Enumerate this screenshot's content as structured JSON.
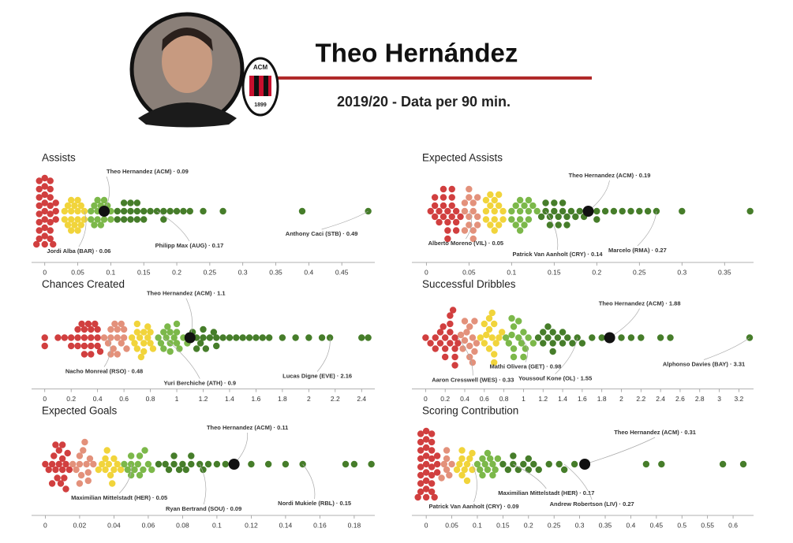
{
  "header": {
    "title": "Theo Hernández",
    "subtitle": "2019/20 - Data per 90 min.",
    "badge_top": "ACM",
    "badge_year": "1899"
  },
  "chart_data": [
    {
      "type": "beeswarm",
      "title": "Assists",
      "xlim": [
        -0.02,
        0.5
      ],
      "xticks": [
        0,
        0.05,
        0.1,
        0.15,
        0.2,
        0.25,
        0.3,
        0.35,
        0.4,
        0.45
      ],
      "series": [
        {
          "color": "#d13f3f",
          "values": [
            0,
            0,
            0,
            0,
            0,
            0,
            0,
            0,
            0,
            0,
            0,
            0,
            0,
            0,
            0,
            0,
            0,
            0,
            0,
            0,
            0,
            0,
            0,
            0,
            0,
            0,
            0,
            0,
            0,
            0
          ]
        },
        {
          "color": "#f1d43b",
          "values": [
            0.03,
            0.03,
            0.035,
            0.04,
            0.04,
            0.04,
            0.045,
            0.045,
            0.05,
            0.05,
            0.05,
            0.055,
            0.055,
            0.06,
            0.06,
            0.04,
            0.035,
            0.05
          ]
        },
        {
          "color": "#7cb84a",
          "values": [
            0.07,
            0.07,
            0.075,
            0.08,
            0.08,
            0.08,
            0.085,
            0.09,
            0.09,
            0.095,
            0.1,
            0.1,
            0.075,
            0.085,
            0.09
          ]
        },
        {
          "color": "#467d2a",
          "values": [
            0.11,
            0.11,
            0.12,
            0.12,
            0.13,
            0.13,
            0.14,
            0.14,
            0.15,
            0.15,
            0.16,
            0.12,
            0.13,
            0.14,
            0.17,
            0.18,
            0.18,
            0.19,
            0.2,
            0.21,
            0.22,
            0.24,
            0.27,
            0.39,
            0.49
          ]
        }
      ],
      "annotations": [
        {
          "label": "Theo Hernandez (ACM) · 0.09",
          "x": 0.09,
          "color": "#111111"
        },
        {
          "label": "Jordi Alba (BAR) · 0.06",
          "x": 0.06
        },
        {
          "label": "Philipp Max (AUG) · 0.17",
          "x": 0.17
        },
        {
          "label": "Anthony Caci (STB) · 0.49",
          "x": 0.49
        }
      ]
    },
    {
      "type": "beeswarm",
      "title": "Expected Assists",
      "xlim": [
        -0.017,
        0.384
      ],
      "xticks": [
        0,
        0.05,
        0.1,
        0.15,
        0.2,
        0.25,
        0.3,
        0.35
      ],
      "series": [
        {
          "color": "#d13f3f",
          "values": [
            0.005,
            0.01,
            0.01,
            0.015,
            0.015,
            0.02,
            0.02,
            0.02,
            0.025,
            0.025,
            0.025,
            0.03,
            0.03,
            0.03,
            0.035,
            0.035,
            0.035,
            0.04,
            0.02,
            0.03,
            0.01,
            0.025
          ]
        },
        {
          "color": "#e3917b",
          "values": [
            0.045,
            0.045,
            0.05,
            0.05,
            0.05,
            0.055,
            0.055,
            0.055,
            0.06,
            0.06,
            0.05,
            0.045,
            0.06,
            0.055
          ]
        },
        {
          "color": "#f1d43b",
          "values": [
            0.07,
            0.07,
            0.075,
            0.075,
            0.08,
            0.08,
            0.08,
            0.085,
            0.085,
            0.09,
            0.09,
            0.075,
            0.08,
            0.085,
            0.07
          ]
        },
        {
          "color": "#7cb84a",
          "values": [
            0.1,
            0.1,
            0.105,
            0.11,
            0.11,
            0.11,
            0.115,
            0.12,
            0.12,
            0.125,
            0.13,
            0.105,
            0.115,
            0.12,
            0.11
          ]
        },
        {
          "color": "#467d2a",
          "values": [
            0.135,
            0.14,
            0.14,
            0.145,
            0.15,
            0.15,
            0.155,
            0.16,
            0.16,
            0.165,
            0.17,
            0.175,
            0.18,
            0.185,
            0.19,
            0.2,
            0.2,
            0.21,
            0.22,
            0.23,
            0.24,
            0.25,
            0.26,
            0.27,
            0.3,
            0.38,
            0.145,
            0.155,
            0.165
          ]
        }
      ],
      "annotations": [
        {
          "label": "Theo Hernandez (ACM) · 0.19",
          "x": 0.19,
          "color": "#111111"
        },
        {
          "label": "Alberto Moreno (VIL) · 0.05",
          "x": 0.05
        },
        {
          "label": "Patrick Van Aanholt (CRY) · 0.14",
          "x": 0.14
        },
        {
          "label": "Marcelo (RMA) · 0.27",
          "x": 0.27
        }
      ]
    },
    {
      "type": "beeswarm",
      "title": "Chances Created",
      "xlim": [
        -0.1,
        2.5
      ],
      "xticks": [
        0,
        0.2,
        0.4,
        0.6,
        0.8,
        1,
        1.2,
        1.4,
        1.6,
        1.8,
        2,
        2.2,
        2.4
      ],
      "series": [
        {
          "color": "#d13f3f",
          "values": [
            0,
            0,
            0.1,
            0.15,
            0.2,
            0.2,
            0.25,
            0.25,
            0.3,
            0.3,
            0.3,
            0.35,
            0.35,
            0.35,
            0.4,
            0.4,
            0.4,
            0.42,
            0.25,
            0.3,
            0.35,
            0.38,
            0.28,
            0.33
          ]
        },
        {
          "color": "#e3917b",
          "values": [
            0.45,
            0.48,
            0.5,
            0.5,
            0.52,
            0.55,
            0.55,
            0.58,
            0.6,
            0.6,
            0.62,
            0.5,
            0.55,
            0.58,
            0.53
          ]
        },
        {
          "color": "#f1d43b",
          "values": [
            0.66,
            0.68,
            0.7,
            0.7,
            0.72,
            0.75,
            0.75,
            0.78,
            0.8,
            0.8,
            0.82,
            0.7,
            0.75,
            0.78,
            0.73
          ]
        },
        {
          "color": "#7cb84a",
          "values": [
            0.86,
            0.88,
            0.9,
            0.92,
            0.95,
            0.95,
            0.98,
            1.0,
            1.0,
            1.02,
            1.05,
            1.08,
            0.9,
            0.95,
            1.0,
            0.93
          ]
        },
        {
          "color": "#467d2a",
          "values": [
            1.1,
            1.12,
            1.15,
            1.18,
            1.2,
            1.2,
            1.25,
            1.3,
            1.3,
            1.35,
            1.4,
            1.45,
            1.5,
            1.55,
            1.6,
            1.65,
            1.7,
            1.8,
            1.9,
            2.0,
            2.1,
            2.16,
            2.4,
            2.45,
            1.15,
            1.22,
            1.28
          ]
        }
      ],
      "annotations": [
        {
          "label": "Theo Hernandez (ACM) · 1.1",
          "x": 1.1,
          "color": "#111111"
        },
        {
          "label": "Nacho Monreal (RSO) · 0.48",
          "x": 0.48
        },
        {
          "label": "Yuri Berchiche (ATH) · 0.9",
          "x": 0.9
        },
        {
          "label": "Lucas Digne (EVE) · 2.16",
          "x": 2.16
        }
      ]
    },
    {
      "type": "beeswarm",
      "title": "Successful Dribbles",
      "xlim": [
        -0.14,
        3.35
      ],
      "xticks": [
        0,
        0.2,
        0.4,
        0.6,
        0.8,
        1,
        1.2,
        1.4,
        1.6,
        1.8,
        2,
        2.2,
        2.4,
        2.6,
        2.8,
        3,
        3.2
      ],
      "series": [
        {
          "color": "#d13f3f",
          "values": [
            0,
            0.05,
            0.1,
            0.15,
            0.15,
            0.2,
            0.2,
            0.25,
            0.25,
            0.25,
            0.3,
            0.3,
            0.3,
            0.33,
            0.2,
            0.25,
            0.3,
            0.1,
            0.18,
            0.28
          ]
        },
        {
          "color": "#e3917b",
          "values": [
            0.36,
            0.38,
            0.4,
            0.42,
            0.45,
            0.45,
            0.48,
            0.5,
            0.5,
            0.52,
            0.4,
            0.45,
            0.48
          ]
        },
        {
          "color": "#f1d43b",
          "values": [
            0.56,
            0.6,
            0.62,
            0.65,
            0.65,
            0.68,
            0.7,
            0.7,
            0.72,
            0.75,
            0.78,
            0.6,
            0.65,
            0.7,
            0.68
          ]
        },
        {
          "color": "#7cb84a",
          "values": [
            0.82,
            0.85,
            0.88,
            0.9,
            0.9,
            0.95,
            0.98,
            1.0,
            1.02,
            1.05,
            1.1,
            0.9,
            0.95,
            1.0,
            0.88
          ]
        },
        {
          "color": "#467d2a",
          "values": [
            1.15,
            1.2,
            1.25,
            1.3,
            1.3,
            1.35,
            1.4,
            1.45,
            1.5,
            1.55,
            1.6,
            1.7,
            1.8,
            1.9,
            2.0,
            2.1,
            2.2,
            2.4,
            2.5,
            3.31,
            1.2,
            1.3,
            1.4,
            1.25
          ]
        }
      ],
      "annotations": [
        {
          "label": "Theo Hernandez (ACM) · 1.88",
          "x": 1.88,
          "color": "#111111"
        },
        {
          "label": "Aaron Cresswell (WES) · 0.33",
          "x": 0.33
        },
        {
          "label": "Mathi Olivera (GET) · 0.98",
          "x": 0.98
        },
        {
          "label": "Youssouf Kone (OL) · 1.55",
          "x": 1.55
        },
        {
          "label": "Alphonso Davies (BAY) · 3.31",
          "x": 3.31
        }
      ]
    },
    {
      "type": "beeswarm",
      "title": "Expected Goals",
      "xlim": [
        -0.008,
        0.192
      ],
      "xticks": [
        0,
        0.02,
        0.04,
        0.06,
        0.08,
        0.1,
        0.12,
        0.14,
        0.16,
        0.18
      ],
      "series": [
        {
          "color": "#d13f3f",
          "values": [
            0,
            0.002,
            0.004,
            0.005,
            0.006,
            0.007,
            0.008,
            0.008,
            0.009,
            0.01,
            0.01,
            0.011,
            0.012,
            0.013,
            0.014,
            0.006,
            0.01,
            0.012,
            0.004
          ]
        },
        {
          "color": "#e3917b",
          "values": [
            0.016,
            0.018,
            0.02,
            0.02,
            0.021,
            0.022,
            0.024,
            0.025,
            0.026,
            0.028,
            0.02,
            0.023,
            0.025
          ]
        },
        {
          "color": "#f1d43b",
          "values": [
            0.031,
            0.033,
            0.035,
            0.035,
            0.037,
            0.038,
            0.04,
            0.04,
            0.042,
            0.044,
            0.036,
            0.039
          ]
        },
        {
          "color": "#7cb84a",
          "values": [
            0.046,
            0.048,
            0.05,
            0.05,
            0.052,
            0.054,
            0.055,
            0.057,
            0.06,
            0.062,
            0.05,
            0.055,
            0.058
          ]
        },
        {
          "color": "#467d2a",
          "values": [
            0.066,
            0.07,
            0.072,
            0.075,
            0.078,
            0.08,
            0.082,
            0.085,
            0.09,
            0.092,
            0.095,
            0.1,
            0.105,
            0.11,
            0.12,
            0.13,
            0.14,
            0.15,
            0.175,
            0.18,
            0.19,
            0.075,
            0.085
          ]
        }
      ],
      "annotations": [
        {
          "label": "Theo Hernandez (ACM) · 0.11",
          "x": 0.11,
          "color": "#111111"
        },
        {
          "label": "Maximilian Mittelstadt (HER) · 0.05",
          "x": 0.05
        },
        {
          "label": "Ryan Bertrand (SOU) · 0.09",
          "x": 0.09
        },
        {
          "label": "Nordi Mukiele (RBL) · 0.15",
          "x": 0.15
        }
      ]
    },
    {
      "type": "beeswarm",
      "title": "Scoring Contribution",
      "xlim": [
        -0.028,
        0.64
      ],
      "xticks": [
        0,
        0.05,
        0.1,
        0.15,
        0.2,
        0.25,
        0.3,
        0.35,
        0.4,
        0.45,
        0.5,
        0.55,
        0.6
      ],
      "series": [
        {
          "color": "#d13f3f",
          "values": [
            0,
            0,
            0,
            0,
            0,
            0,
            0,
            0,
            0,
            0,
            0,
            0,
            0,
            0,
            0,
            0,
            0,
            0,
            0,
            0,
            0,
            0,
            0,
            0,
            0,
            0,
            0,
            0,
            0,
            0
          ]
        },
        {
          "color": "#e3917b",
          "values": [
            0.03,
            0.035,
            0.04,
            0.04,
            0.045,
            0.05,
            0.04
          ]
        },
        {
          "color": "#f1d43b",
          "values": [
            0.06,
            0.065,
            0.07,
            0.07,
            0.075,
            0.08,
            0.085,
            0.09,
            0.09,
            0.07,
            0.08
          ]
        },
        {
          "color": "#7cb84a",
          "values": [
            0.1,
            0.105,
            0.11,
            0.115,
            0.12,
            0.125,
            0.13,
            0.135,
            0.14,
            0.11,
            0.12,
            0.13
          ]
        },
        {
          "color": "#467d2a",
          "values": [
            0.15,
            0.16,
            0.17,
            0.18,
            0.19,
            0.2,
            0.21,
            0.22,
            0.24,
            0.26,
            0.27,
            0.29,
            0.31,
            0.43,
            0.46,
            0.58,
            0.62,
            0.17,
            0.2
          ]
        }
      ],
      "annotations": [
        {
          "label": "Theo Hernandez (ACM) · 0.31",
          "x": 0.31,
          "color": "#111111"
        },
        {
          "label": "Patrick Van Aanholt (CRY) · 0.09",
          "x": 0.09
        },
        {
          "label": "Maximilian Mittelstadt (HER) · 0.17",
          "x": 0.17
        },
        {
          "label": "Andrew Robertson (LIV) · 0.27",
          "x": 0.27
        }
      ]
    }
  ]
}
